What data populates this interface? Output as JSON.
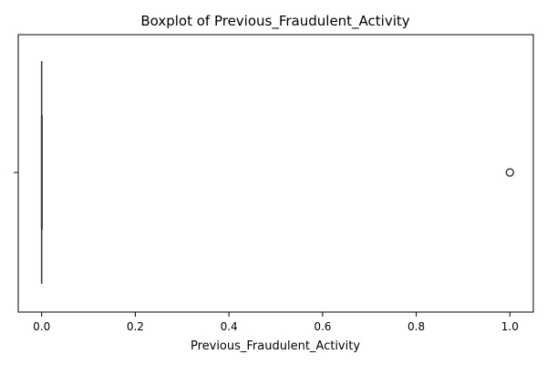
{
  "chart_data": {
    "type": "boxplot",
    "orientation": "horizontal",
    "title": "Boxplot of Previous_Fraudulent_Activity",
    "xlabel": "Previous_Fraudulent_Activity",
    "ylabel": "",
    "xlim": [
      -0.05,
      1.05
    ],
    "xticks": [
      0.0,
      0.2,
      0.4,
      0.6,
      0.8,
      1.0
    ],
    "xtick_labels": [
      "0.0",
      "0.2",
      "0.4",
      "0.6",
      "0.8",
      "1.0"
    ],
    "grid": false,
    "box": {
      "q1": 0.0,
      "median": 0.0,
      "q3": 0.0,
      "whisker_low": 0.0,
      "whisker_high": 0.0
    },
    "outliers": [
      1.0
    ],
    "colors": {
      "box_line": "#3f3f3f",
      "outlier_edge": "#3f3f3f",
      "axes": "#000000"
    }
  }
}
